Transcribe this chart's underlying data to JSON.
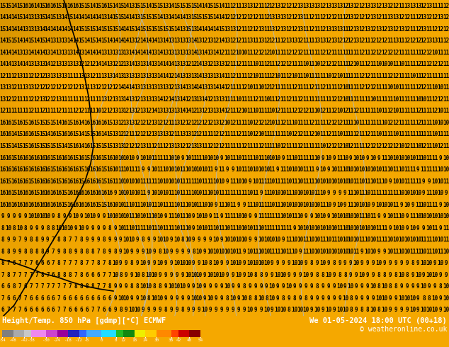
{
  "title_left": "Height/Temp. 850 hPa [gdmp][°C] ECMWF",
  "title_right": "We 01-05-2024 18:00 UTC (00+18)",
  "copyright": "© weatheronline.co.uk",
  "fig_width": 6.34,
  "fig_height": 4.9,
  "dpi": 100,
  "map_bg_color": "#f5a800",
  "bar_bg_color": "#000000",
  "colorbar_colors": [
    "#7f7f7f",
    "#aaaaaa",
    "#c8c8c8",
    "#ee88ee",
    "#cc44cc",
    "#990099",
    "#2222bb",
    "#3366ff",
    "#44aaff",
    "#22ddff",
    "#22bb22",
    "#118811",
    "#eeee00",
    "#ffcc00",
    "#ff8800",
    "#ff4400",
    "#cc0000",
    "#880000"
  ],
  "colorbar_levels": [
    -54,
    -48,
    -42,
    -38,
    -30,
    -24,
    -18,
    -12,
    -8,
    0,
    8,
    12,
    18,
    24,
    30,
    38,
    42,
    48,
    54
  ],
  "num_rows": 27,
  "num_cols": 80,
  "font_size": 5.5,
  "text_color": "#000000",
  "contour_black_color": "#000000",
  "contour_grey_color": "#aabbcc"
}
